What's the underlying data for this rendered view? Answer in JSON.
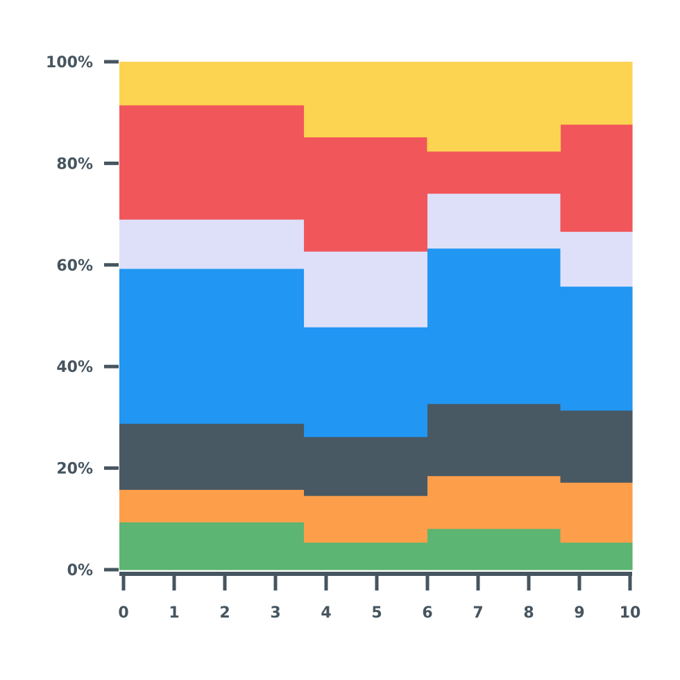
{
  "chart_data": {
    "type": "area",
    "stacking": "percent",
    "step": true,
    "x_ticks": [
      "0",
      "1",
      "2",
      "3",
      "4",
      "5",
      "6",
      "7",
      "8",
      "9",
      "10"
    ],
    "y_ticks": [
      "0%",
      "20%",
      "40%",
      "60%",
      "80%",
      "100%"
    ],
    "xlim": [
      0,
      10
    ],
    "ylim": [
      0,
      100
    ],
    "grid": false,
    "segments": [
      {
        "x_start": 0,
        "x_end": 3.6
      },
      {
        "x_start": 3.6,
        "x_end": 6
      },
      {
        "x_start": 6,
        "x_end": 8.6
      },
      {
        "x_start": 8.6,
        "x_end": 10
      }
    ],
    "series": [
      {
        "color": "#5cb572",
        "values": [
          9.4,
          5.4,
          8.1,
          5.4
        ]
      },
      {
        "color": "#fd9e4b",
        "values": [
          6.4,
          9.2,
          10.4,
          11.8
        ]
      },
      {
        "color": "#485963",
        "values": [
          13.0,
          11.6,
          14.2,
          14.2
        ]
      },
      {
        "color": "#2196f3",
        "values": [
          30.5,
          21.6,
          30.6,
          24.4
        ]
      },
      {
        "color": "#dde0f8",
        "values": [
          9.7,
          14.9,
          10.8,
          10.8
        ]
      },
      {
        "color": "#f1565b",
        "values": [
          22.5,
          22.5,
          8.3,
          21.1
        ]
      },
      {
        "color": "#fdd352",
        "values": [
          8.5,
          14.8,
          17.6,
          12.3
        ]
      }
    ],
    "axis_color": "#46555f"
  }
}
